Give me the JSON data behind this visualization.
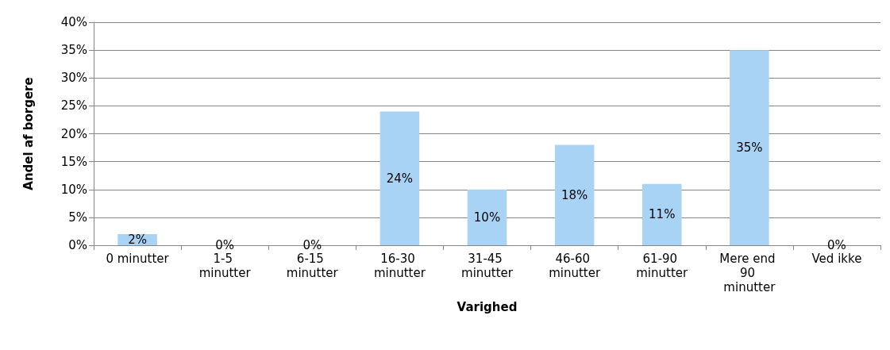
{
  "chart_data": {
    "type": "bar",
    "xlabel": "Varighed",
    "ylabel": "Andel af borgere",
    "categories": [
      "0 minutter",
      "1-5 minutter",
      "6-15 minutter",
      "16-30 minutter",
      "31-45 minutter",
      "46-60 minutter",
      "61-90 minutter",
      "Mere end 90 minutter",
      "Ved ikke"
    ],
    "values": [
      2,
      0,
      0,
      24,
      10,
      18,
      11,
      35,
      0
    ],
    "value_labels": [
      "2%",
      "0%",
      "0%",
      "24%",
      "10%",
      "18%",
      "11%",
      "35%",
      "0%"
    ],
    "color": "#a9d3f5",
    "ylim": [
      0,
      40
    ],
    "yticks": [
      {
        "value": 0,
        "label": "0%"
      },
      {
        "value": 5,
        "label": "5%"
      },
      {
        "value": 10,
        "label": "10%"
      },
      {
        "value": 15,
        "label": "15%"
      },
      {
        "value": 20,
        "label": "20%"
      },
      {
        "value": 25,
        "label": "25%"
      },
      {
        "value": 30,
        "label": "30%"
      },
      {
        "value": 35,
        "label": "35%"
      },
      {
        "value": 40,
        "label": "40%"
      }
    ],
    "grid": "y"
  }
}
